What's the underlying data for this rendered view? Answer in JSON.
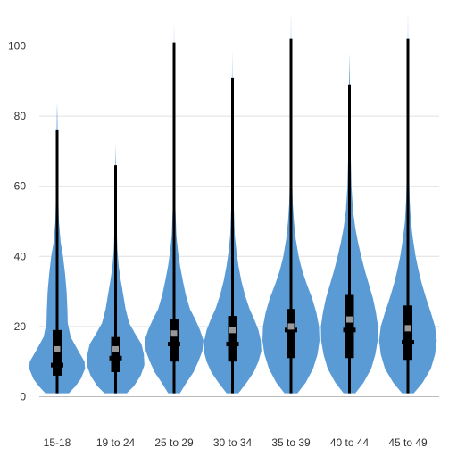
{
  "chart_data": {
    "type": "violin",
    "title": "",
    "xlabel": "",
    "ylabel": "",
    "ylim": [
      0,
      110
    ],
    "yticks": [
      0,
      20,
      40,
      60,
      80,
      100
    ],
    "grid": true,
    "colors": {
      "violin": "#5b9bd5",
      "whisker": "#000000",
      "box": "#000000",
      "mean": "#999999",
      "grid": "#e0e0e0"
    },
    "categories": [
      "15-18",
      "19 to 24",
      "25 to 29",
      "30 to 34",
      "35 to 39",
      "40 to 44",
      "45 to 49"
    ],
    "series": [
      {
        "category": "15-18",
        "min": 1,
        "q1": 6,
        "median": 9,
        "q3": 19,
        "max": 76,
        "mean": 13.5,
        "density": [
          [
            1,
            0.4
          ],
          [
            3,
            0.62
          ],
          [
            5,
            0.8
          ],
          [
            8,
            0.95
          ],
          [
            10,
            0.93
          ],
          [
            13,
            0.72
          ],
          [
            17,
            0.46
          ],
          [
            21,
            0.36
          ],
          [
            25,
            0.35
          ],
          [
            30,
            0.32
          ],
          [
            35,
            0.27
          ],
          [
            40,
            0.2
          ],
          [
            44,
            0.12
          ],
          [
            50,
            0.06
          ],
          [
            60,
            0.03
          ],
          [
            70,
            0.02
          ],
          [
            80,
            0.01
          ],
          [
            84,
            0.0
          ]
        ]
      },
      {
        "category": "19 to 24",
        "min": 1,
        "q1": 7,
        "median": 11,
        "q3": 17,
        "max": 66,
        "mean": 13.5,
        "density": [
          [
            1,
            0.38
          ],
          [
            3,
            0.62
          ],
          [
            6,
            0.85
          ],
          [
            9,
            0.98
          ],
          [
            12,
            0.96
          ],
          [
            15,
            0.88
          ],
          [
            18,
            0.66
          ],
          [
            21,
            0.46
          ],
          [
            25,
            0.34
          ],
          [
            29,
            0.26
          ],
          [
            33,
            0.18
          ],
          [
            37,
            0.11
          ],
          [
            42,
            0.06
          ],
          [
            50,
            0.03
          ],
          [
            60,
            0.02
          ],
          [
            72,
            0.0
          ]
        ]
      },
      {
        "category": "25 to 29",
        "min": 1,
        "q1": 10,
        "median": 15,
        "q3": 22,
        "max": 101,
        "mean": 18,
        "density": [
          [
            1,
            0.2
          ],
          [
            4,
            0.42
          ],
          [
            7,
            0.66
          ],
          [
            10,
            0.82
          ],
          [
            13,
            0.96
          ],
          [
            16,
            1.0
          ],
          [
            19,
            0.88
          ],
          [
            22,
            0.72
          ],
          [
            25,
            0.54
          ],
          [
            29,
            0.4
          ],
          [
            33,
            0.3
          ],
          [
            37,
            0.21
          ],
          [
            41,
            0.14
          ],
          [
            46,
            0.08
          ],
          [
            55,
            0.04
          ],
          [
            70,
            0.02
          ],
          [
            90,
            0.01
          ],
          [
            108,
            0.0
          ]
        ]
      },
      {
        "category": "30 to 34",
        "min": 1,
        "q1": 10,
        "median": 15,
        "q3": 23,
        "max": 91,
        "mean": 19,
        "density": [
          [
            1,
            0.2
          ],
          [
            4,
            0.48
          ],
          [
            7,
            0.72
          ],
          [
            10,
            0.88
          ],
          [
            13,
            0.98
          ],
          [
            16,
            0.96
          ],
          [
            19,
            0.88
          ],
          [
            22,
            0.74
          ],
          [
            25,
            0.58
          ],
          [
            29,
            0.42
          ],
          [
            33,
            0.3
          ],
          [
            37,
            0.21
          ],
          [
            41,
            0.14
          ],
          [
            46,
            0.08
          ],
          [
            55,
            0.04
          ],
          [
            70,
            0.02
          ],
          [
            85,
            0.01
          ],
          [
            99,
            0.0
          ]
        ]
      },
      {
        "category": "35 to 39",
        "min": 1,
        "q1": 11,
        "median": 19,
        "q3": 25,
        "max": 102,
        "mean": 20,
        "density": [
          [
            1,
            0.22
          ],
          [
            4,
            0.5
          ],
          [
            8,
            0.75
          ],
          [
            12,
            0.9
          ],
          [
            16,
            0.97
          ],
          [
            20,
            0.95
          ],
          [
            24,
            0.86
          ],
          [
            28,
            0.72
          ],
          [
            32,
            0.54
          ],
          [
            36,
            0.38
          ],
          [
            40,
            0.26
          ],
          [
            45,
            0.16
          ],
          [
            50,
            0.1
          ],
          [
            55,
            0.06
          ],
          [
            65,
            0.03
          ],
          [
            80,
            0.02
          ],
          [
            95,
            0.01
          ],
          [
            110,
            0.0
          ]
        ]
      },
      {
        "category": "40 to 44",
        "min": 1,
        "q1": 11,
        "median": 19,
        "q3": 29,
        "max": 89,
        "mean": 22,
        "density": [
          [
            1,
            0.2
          ],
          [
            4,
            0.48
          ],
          [
            8,
            0.74
          ],
          [
            12,
            0.88
          ],
          [
            16,
            0.96
          ],
          [
            20,
            0.97
          ],
          [
            24,
            0.9
          ],
          [
            28,
            0.8
          ],
          [
            32,
            0.66
          ],
          [
            36,
            0.52
          ],
          [
            40,
            0.4
          ],
          [
            44,
            0.29
          ],
          [
            48,
            0.2
          ],
          [
            53,
            0.12
          ],
          [
            60,
            0.07
          ],
          [
            70,
            0.04
          ],
          [
            85,
            0.02
          ],
          [
            98,
            0.0
          ]
        ]
      },
      {
        "category": "45 to 49",
        "min": 1,
        "q1": 10.5,
        "median": 15.5,
        "q3": 26,
        "max": 102,
        "mean": 19.5,
        "density": [
          [
            1,
            0.2
          ],
          [
            4,
            0.5
          ],
          [
            8,
            0.78
          ],
          [
            12,
            0.92
          ],
          [
            16,
            0.98
          ],
          [
            20,
            0.92
          ],
          [
            24,
            0.78
          ],
          [
            28,
            0.62
          ],
          [
            32,
            0.48
          ],
          [
            36,
            0.36
          ],
          [
            40,
            0.26
          ],
          [
            45,
            0.17
          ],
          [
            50,
            0.1
          ],
          [
            56,
            0.06
          ],
          [
            65,
            0.03
          ],
          [
            80,
            0.02
          ],
          [
            95,
            0.01
          ],
          [
            110,
            0.0
          ]
        ]
      }
    ]
  }
}
